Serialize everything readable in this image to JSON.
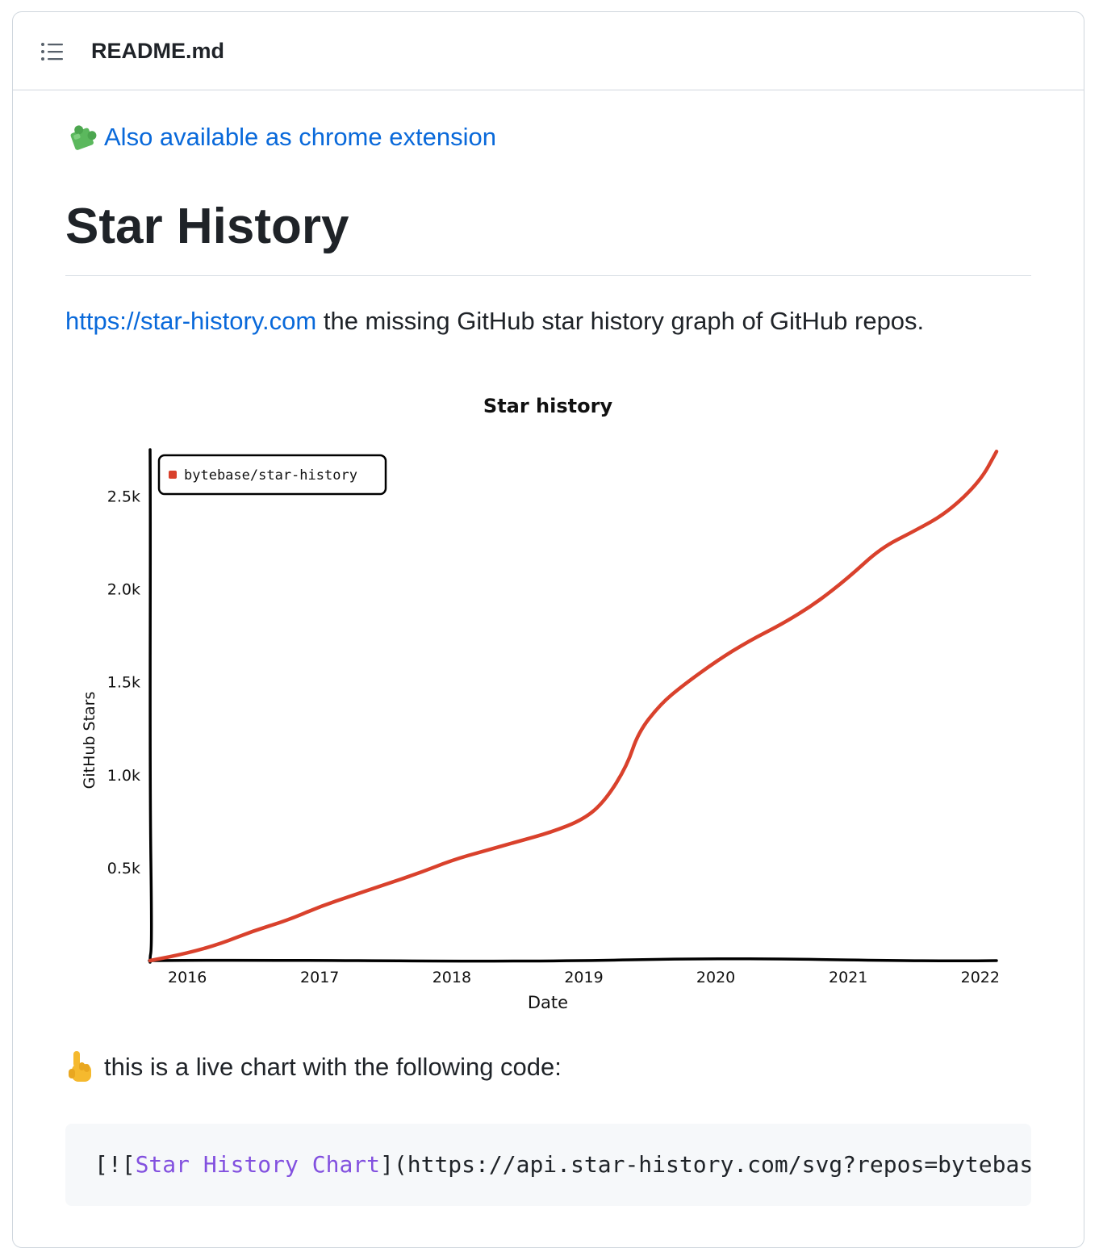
{
  "header": {
    "file_name": "README.md",
    "toc_icon": "list-unordered-icon"
  },
  "extension": {
    "icon": "puzzle-piece-icon",
    "link_text": "Also available as chrome extension"
  },
  "title": "Star History",
  "intro": {
    "link_text": "https://star-history.com",
    "rest_text": " the missing GitHub star history graph of GitHub repos."
  },
  "chart_data": {
    "type": "line",
    "title": "Star history",
    "xlabel": "Date",
    "ylabel": "GitHub Stars",
    "x_ticks": [
      "2016",
      "2017",
      "2018",
      "2019",
      "2020",
      "2021",
      "2022"
    ],
    "y_ticks": [
      "0.5k",
      "1.0k",
      "1.5k",
      "2.0k",
      "2.5k"
    ],
    "xlim": [
      "2015-09-20",
      "2022-02-15"
    ],
    "ylim": [
      0,
      2750
    ],
    "legend_position": "top-left",
    "grid": false,
    "series": [
      {
        "name": "bytebase/star-history",
        "color": "#d9412c",
        "x": [
          "2015-09-20",
          "2016-01-01",
          "2016-04-01",
          "2016-07-01",
          "2016-10-01",
          "2017-01-01",
          "2017-04-01",
          "2017-07-01",
          "2017-10-01",
          "2018-01-01",
          "2018-04-01",
          "2018-07-01",
          "2018-10-01",
          "2019-01-01",
          "2019-03-01",
          "2019-05-01",
          "2019-06-01",
          "2019-08-01",
          "2019-10-01",
          "2020-01-01",
          "2020-04-01",
          "2020-07-01",
          "2020-10-01",
          "2021-01-01",
          "2021-04-01",
          "2021-07-01",
          "2021-10-01",
          "2022-01-01",
          "2022-02-15"
        ],
        "values": [
          0,
          40,
          90,
          160,
          215,
          290,
          350,
          410,
          470,
          540,
          590,
          640,
          690,
          760,
          860,
          1050,
          1230,
          1380,
          1480,
          1610,
          1720,
          1810,
          1920,
          2060,
          2220,
          2310,
          2410,
          2580,
          2740
        ]
      }
    ]
  },
  "live_line": {
    "icon": "pointing-up-hand-icon",
    "text": "this is a live chart with the following code:"
  },
  "code": {
    "prefix": "[![",
    "alt_text": "Star History Chart",
    "suffix": "](https://api.star-history.com/svg?repos=bytebase/s"
  }
}
